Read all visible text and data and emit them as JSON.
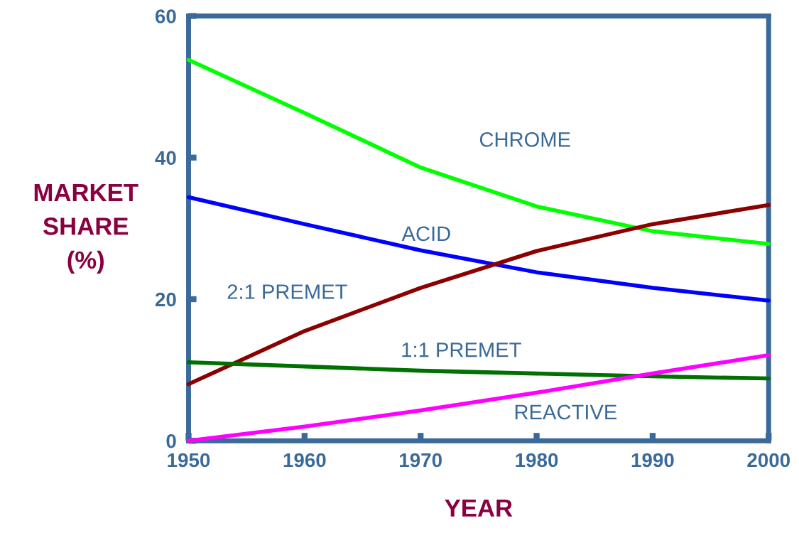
{
  "chart_data": {
    "type": "line",
    "xlabel": "YEAR",
    "ylabel": "MARKET\nSHARE\n(%)",
    "x": [
      1950,
      1960,
      1970,
      1980,
      1990,
      2000
    ],
    "series": [
      {
        "name": "CHROME",
        "color": "#00ff00",
        "values": [
          53.8,
          46.3,
          38.6,
          33.1,
          29.6,
          27.8
        ]
      },
      {
        "name": "ACID",
        "color": "#0000ff",
        "values": [
          34.4,
          30.6,
          26.9,
          23.8,
          21.6,
          19.8
        ]
      },
      {
        "name": "2:1 PREMET",
        "color": "#8b0000",
        "values": [
          8.0,
          15.5,
          21.6,
          26.8,
          30.6,
          33.3
        ]
      },
      {
        "name": "1:1 PREMET",
        "color": "#007000",
        "values": [
          11.1,
          10.5,
          9.9,
          9.5,
          9.1,
          8.8
        ]
      },
      {
        "name": "REACTIVE",
        "color": "#ff00ff",
        "values": [
          0.0,
          2.0,
          4.3,
          6.8,
          9.5,
          12.1
        ]
      }
    ],
    "xlim": [
      1950,
      2000
    ],
    "xticks": [
      1950,
      1960,
      1970,
      1980,
      1990,
      2000
    ],
    "ylim": [
      0,
      60
    ],
    "yticks": [
      0,
      20,
      40,
      60
    ],
    "grid": false,
    "legend": false,
    "marker": "none",
    "line_style": "solid"
  }
}
